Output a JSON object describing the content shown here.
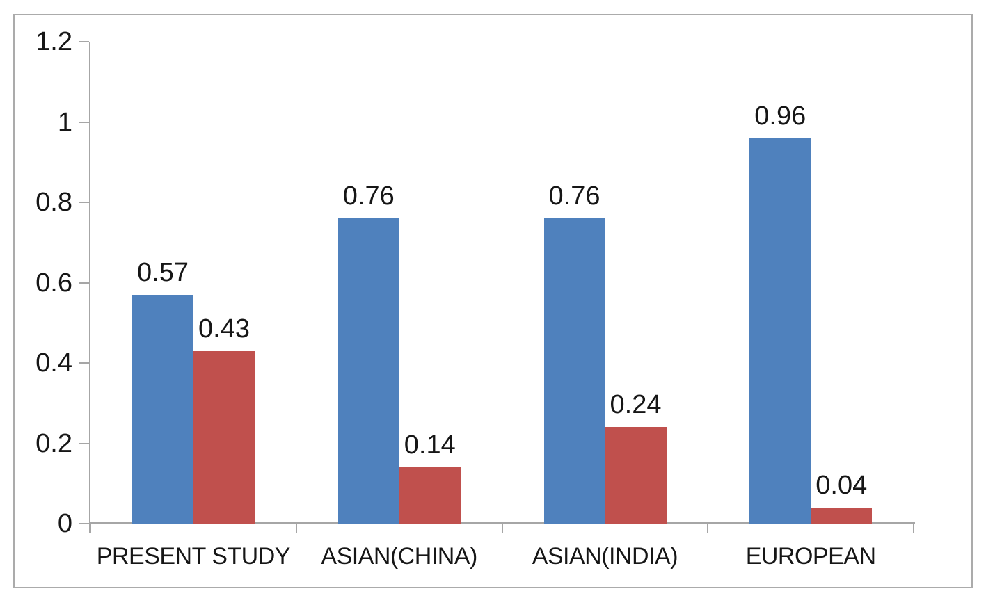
{
  "chart_data": {
    "type": "bar",
    "title": "",
    "xlabel": "",
    "ylabel": "",
    "categories": [
      "PRESENT STUDY",
      "ASIAN(CHINA)",
      "ASIAN(INDIA)",
      "EUROPEAN"
    ],
    "series": [
      {
        "name": "",
        "color": "#4F81BD",
        "values": [
          0.57,
          0.76,
          0.76,
          0.96
        ],
        "labels": [
          "0.57",
          "0.76",
          "0.76",
          "0.96"
        ]
      },
      {
        "name": "",
        "color": "#C0504D",
        "values": [
          0.43,
          0.14,
          0.24,
          0.04
        ],
        "labels": [
          "0.43",
          "0.14",
          "0.24",
          "0.04"
        ]
      }
    ],
    "ylim": [
      0,
      1.2
    ],
    "y_tick_labels": [
      "0",
      "0.2",
      "0.4",
      "0.6",
      "0.8",
      "1",
      "1.2"
    ],
    "grid": false,
    "legend": "none",
    "data_labels": true,
    "colors": {
      "axis": "#A6A6A6",
      "frame_border": "#ABABAB",
      "text": "#161616",
      "background": "#FFFFFF"
    }
  }
}
